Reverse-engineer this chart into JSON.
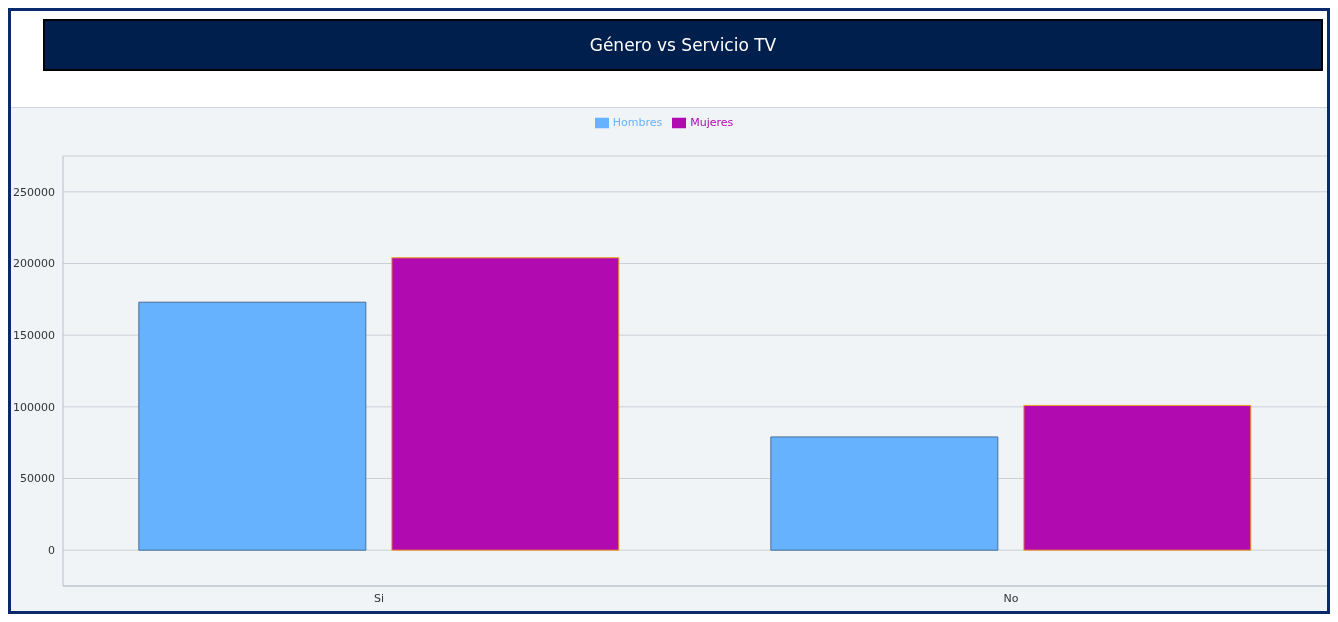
{
  "chart_data": {
    "type": "bar",
    "title": "Género vs Servicio TV",
    "categories": [
      "Si",
      "No"
    ],
    "series": [
      {
        "name": "Hombres",
        "color": "#66b2ff",
        "values": [
          173000,
          79000
        ]
      },
      {
        "name": "Mujeres",
        "color": "#b10ab1",
        "values": [
          204000,
          101000
        ]
      }
    ],
    "ylim": [
      -25000,
      275000
    ],
    "yticks": [
      0,
      50000,
      100000,
      150000,
      200000,
      250000
    ],
    "grid": "y",
    "legend": "top"
  }
}
